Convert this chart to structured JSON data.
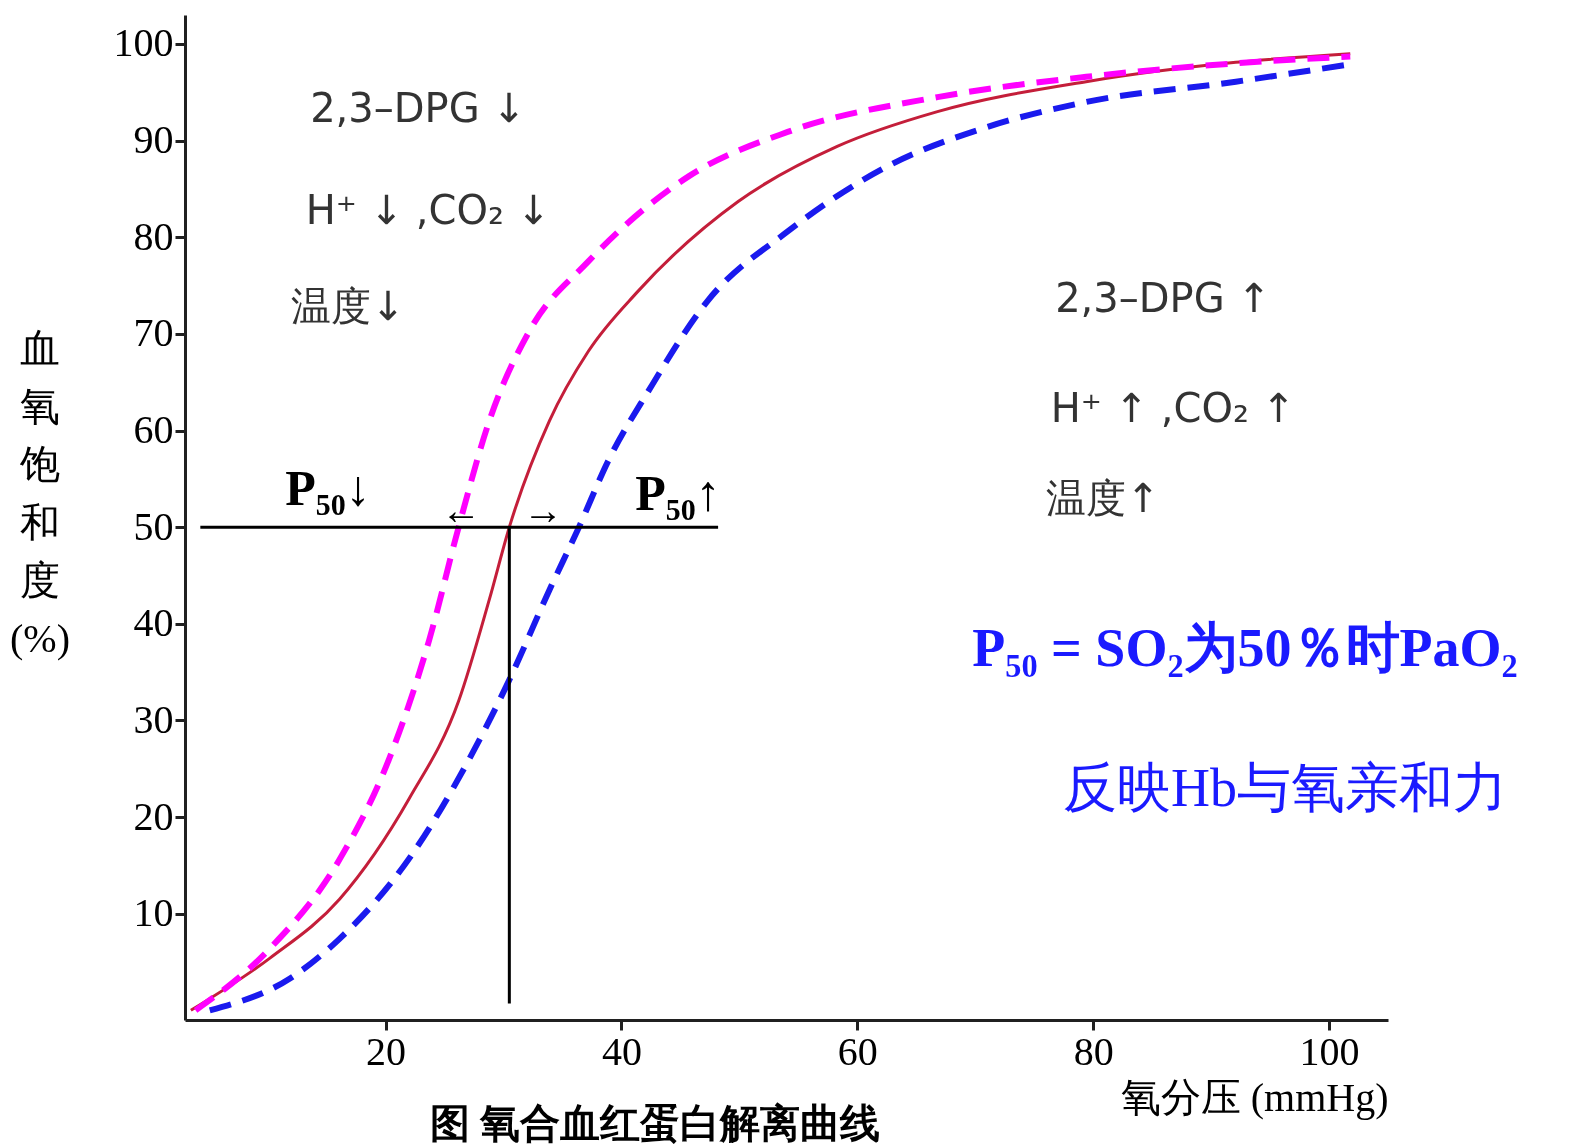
{
  "chart_data": {
    "type": "line",
    "xlabel": "氧分压 (mmHg)",
    "ylabel": "血氧饱和度(%)",
    "xlim": [
      3,
      105
    ],
    "ylim": [
      -1,
      103
    ],
    "xticks": [
      20,
      40,
      60,
      80,
      100
    ],
    "yticks": [
      10,
      20,
      30,
      40,
      50,
      60,
      70,
      80,
      90,
      100
    ],
    "grid": false,
    "marker": "none",
    "series": [
      {
        "color": "#c41e3a",
        "line_style": "solid",
        "x": [
          3.5,
          10.2,
          16.1,
          22,
          26.2,
          28.8,
          30.5,
          33.9,
          37.2,
          41.4,
          49.9,
          58.3,
          66.8,
          79.4,
          92.1,
          101.8
        ],
        "values": [
          0,
          5.4,
          11.5,
          21.9,
          32,
          42.5,
          50,
          61,
          68.2,
          74.4,
          83.7,
          89.4,
          93,
          96.1,
          98.1,
          99
        ]
      },
      {
        "color": "#ff00ff",
        "line_style": "dashed",
        "x": [
          3.9,
          10.2,
          16.1,
          20.3,
          23.7,
          26.2,
          28.8,
          32.2,
          37.2,
          45.7,
          54.1,
          66.8,
          79.4,
          92.1,
          101.8
        ],
        "values": [
          0,
          6.4,
          15.6,
          26,
          38.3,
          50,
          61,
          70.3,
          77.5,
          86.3,
          90.9,
          94.5,
          96.6,
          98,
          98.7
        ]
      },
      {
        "color": "#1a1aee",
        "line_style": "dashed",
        "x": [
          5.1,
          11.9,
          16.1,
          22,
          27.1,
          30.5,
          33.9,
          36.4,
          38.9,
          42.3,
          47.3,
          54.1,
          62.5,
          71,
          79.4,
          92.1,
          101.8
        ],
        "values": [
          0,
          3.3,
          7.4,
          15.7,
          26,
          34.2,
          43.5,
          50,
          56.9,
          64.1,
          73.4,
          80.6,
          87.3,
          91.4,
          94,
          96.1,
          97.9
        ]
      },
      {
        "color": "#000000",
        "line_style": "solid",
        "x": [
          4.3,
          48.2
        ],
        "values": [
          50,
          50
        ]
      },
      {
        "color": "#000000",
        "line_style": "solid",
        "x": [
          30.5,
          30.5
        ],
        "values": [
          50,
          0.7
        ]
      }
    ],
    "annotations": [
      "2,3–DPG ↓",
      "H⁺ ↓ ,CO₂ ↓",
      "温度↓",
      "2,3–DPG ↑",
      "H⁺ ↑ ,CO₂ ↑",
      "温度↑",
      "P₅₀↓",
      "←",
      "→",
      "P₅₀↑",
      "P₅₀ = SO₂为50％时PaO₂",
      "反映Hb与氧亲和力",
      "图  氧合血红蛋白解离曲线"
    ]
  }
}
